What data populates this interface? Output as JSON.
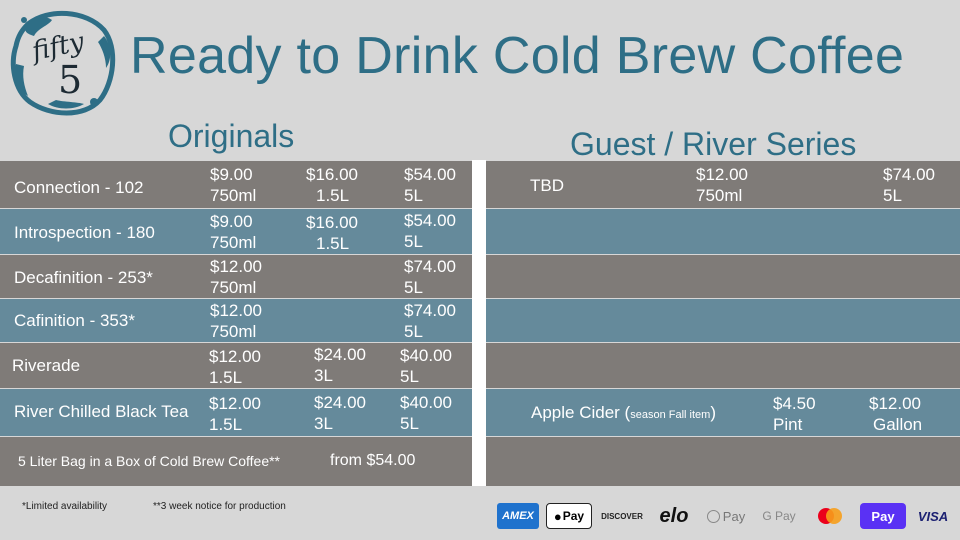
{
  "logo": {
    "line1": "fifty",
    "line2": "5"
  },
  "title": "Ready to Drink Cold Brew Coffee",
  "originals": {
    "heading": "Originals",
    "rows": [
      {
        "name": "Connection - 102",
        "p1": "$9.00",
        "s1": "750ml",
        "p2": "$16.00",
        "s2": "1.5L",
        "p3": "$54.00",
        "s3": "5L"
      },
      {
        "name": "Introspection - 180",
        "p1": "$9.00",
        "s1": "750ml",
        "p2": "$16.00",
        "s2": "1.5L",
        "p3": "$54.00",
        "s3": "5L"
      },
      {
        "name": "Decafinition - 253*",
        "p1": "$12.00",
        "s1": "750ml",
        "p2": "",
        "s2": "",
        "p3": "$74.00",
        "s3": "5L"
      },
      {
        "name": "Cafinition - 353*",
        "p1": "$12.00",
        "s1": "750ml",
        "p2": "",
        "s2": "",
        "p3": "$74.00",
        "s3": "5L"
      },
      {
        "name": "Riverade",
        "p1": "$12.00",
        "s1": "1.5L",
        "p2": "$24.00",
        "s2": "3L",
        "p3": "$40.00",
        "s3": "5L"
      },
      {
        "name": "River Chilled Black Tea",
        "p1": "$12.00",
        "s1": "1.5L",
        "p2": "$24.00",
        "s2": "3L",
        "p3": "$40.00",
        "s3": "5L"
      }
    ],
    "bag_text": "5 Liter Bag in a Box of Cold Brew Coffee**",
    "bag_price": "from $54.00"
  },
  "guest": {
    "heading": "Guest / River Series",
    "tbd": {
      "name": "TBD",
      "p1": "$12.00",
      "s1": "750ml",
      "p3": "$74.00",
      "s3": "5L"
    },
    "cider": {
      "name": "Apple Cider (",
      "note": "season Fall item",
      "close": ")",
      "p1": "$4.50",
      "s1": "Pint",
      "p2": "$12.00",
      "s2": "Gallon"
    }
  },
  "footnotes": {
    "limited": "*Limited availability",
    "notice": "**3 week notice for production"
  },
  "payments": [
    "AMEX",
    "Pay",
    "DISCOVER",
    "elo",
    "Pay",
    "G Pay",
    "mastercard",
    "Pay",
    "VISA"
  ],
  "colors": {
    "title": "#2e6e86",
    "row_gray": "#7f7b78",
    "row_blue": "#658a9b"
  }
}
